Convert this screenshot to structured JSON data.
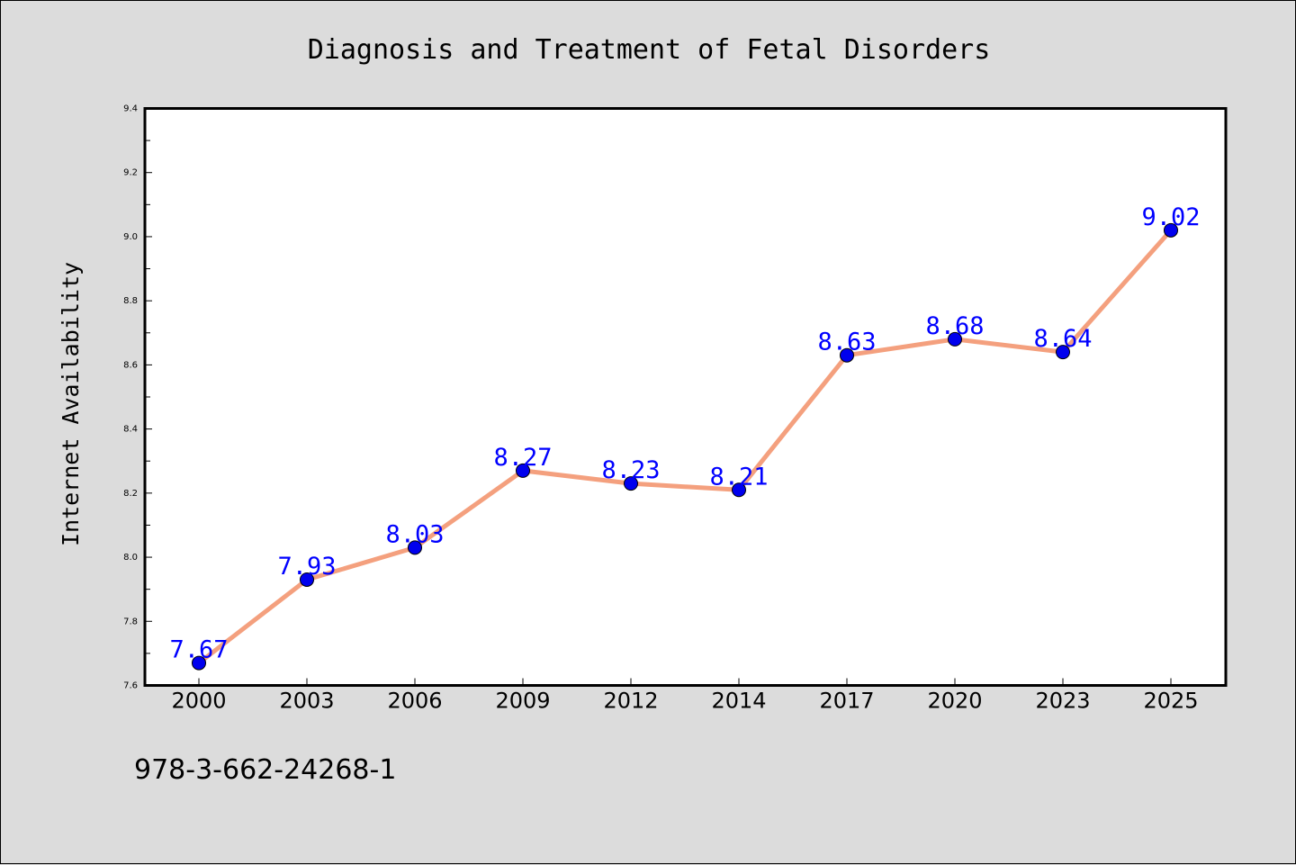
{
  "chart_data": {
    "type": "line",
    "title": "Diagnosis and Treatment of Fetal Disorders",
    "xlabel": "",
    "ylabel": "Internet Availability",
    "categories": [
      "2000",
      "2003",
      "2006",
      "2009",
      "2012",
      "2014",
      "2017",
      "2020",
      "2023",
      "2025"
    ],
    "values": [
      7.67,
      7.93,
      8.03,
      8.27,
      8.23,
      8.21,
      8.63,
      8.68,
      8.64,
      9.02
    ],
    "data_labels": [
      "7.67",
      "7.93",
      "8.03",
      "8.27",
      "8.23",
      "8.21",
      "8.63",
      "8.68",
      "8.64",
      "9.02"
    ],
    "ylim": [
      7.6,
      9.4
    ],
    "yticks": [
      "7.6",
      "7.8",
      "8.0",
      "8.2",
      "8.4",
      "8.6",
      "8.8",
      "9.0",
      "9.2",
      "9.4"
    ],
    "grid": false,
    "line_color": "#f4a07e",
    "marker_color": "#0000ee",
    "label_color": "#0000ff",
    "plot_background": "#ffffff",
    "figure_background": "#dcdcdc"
  },
  "annotation": {
    "isbn": "978-3-662-24268-1"
  }
}
